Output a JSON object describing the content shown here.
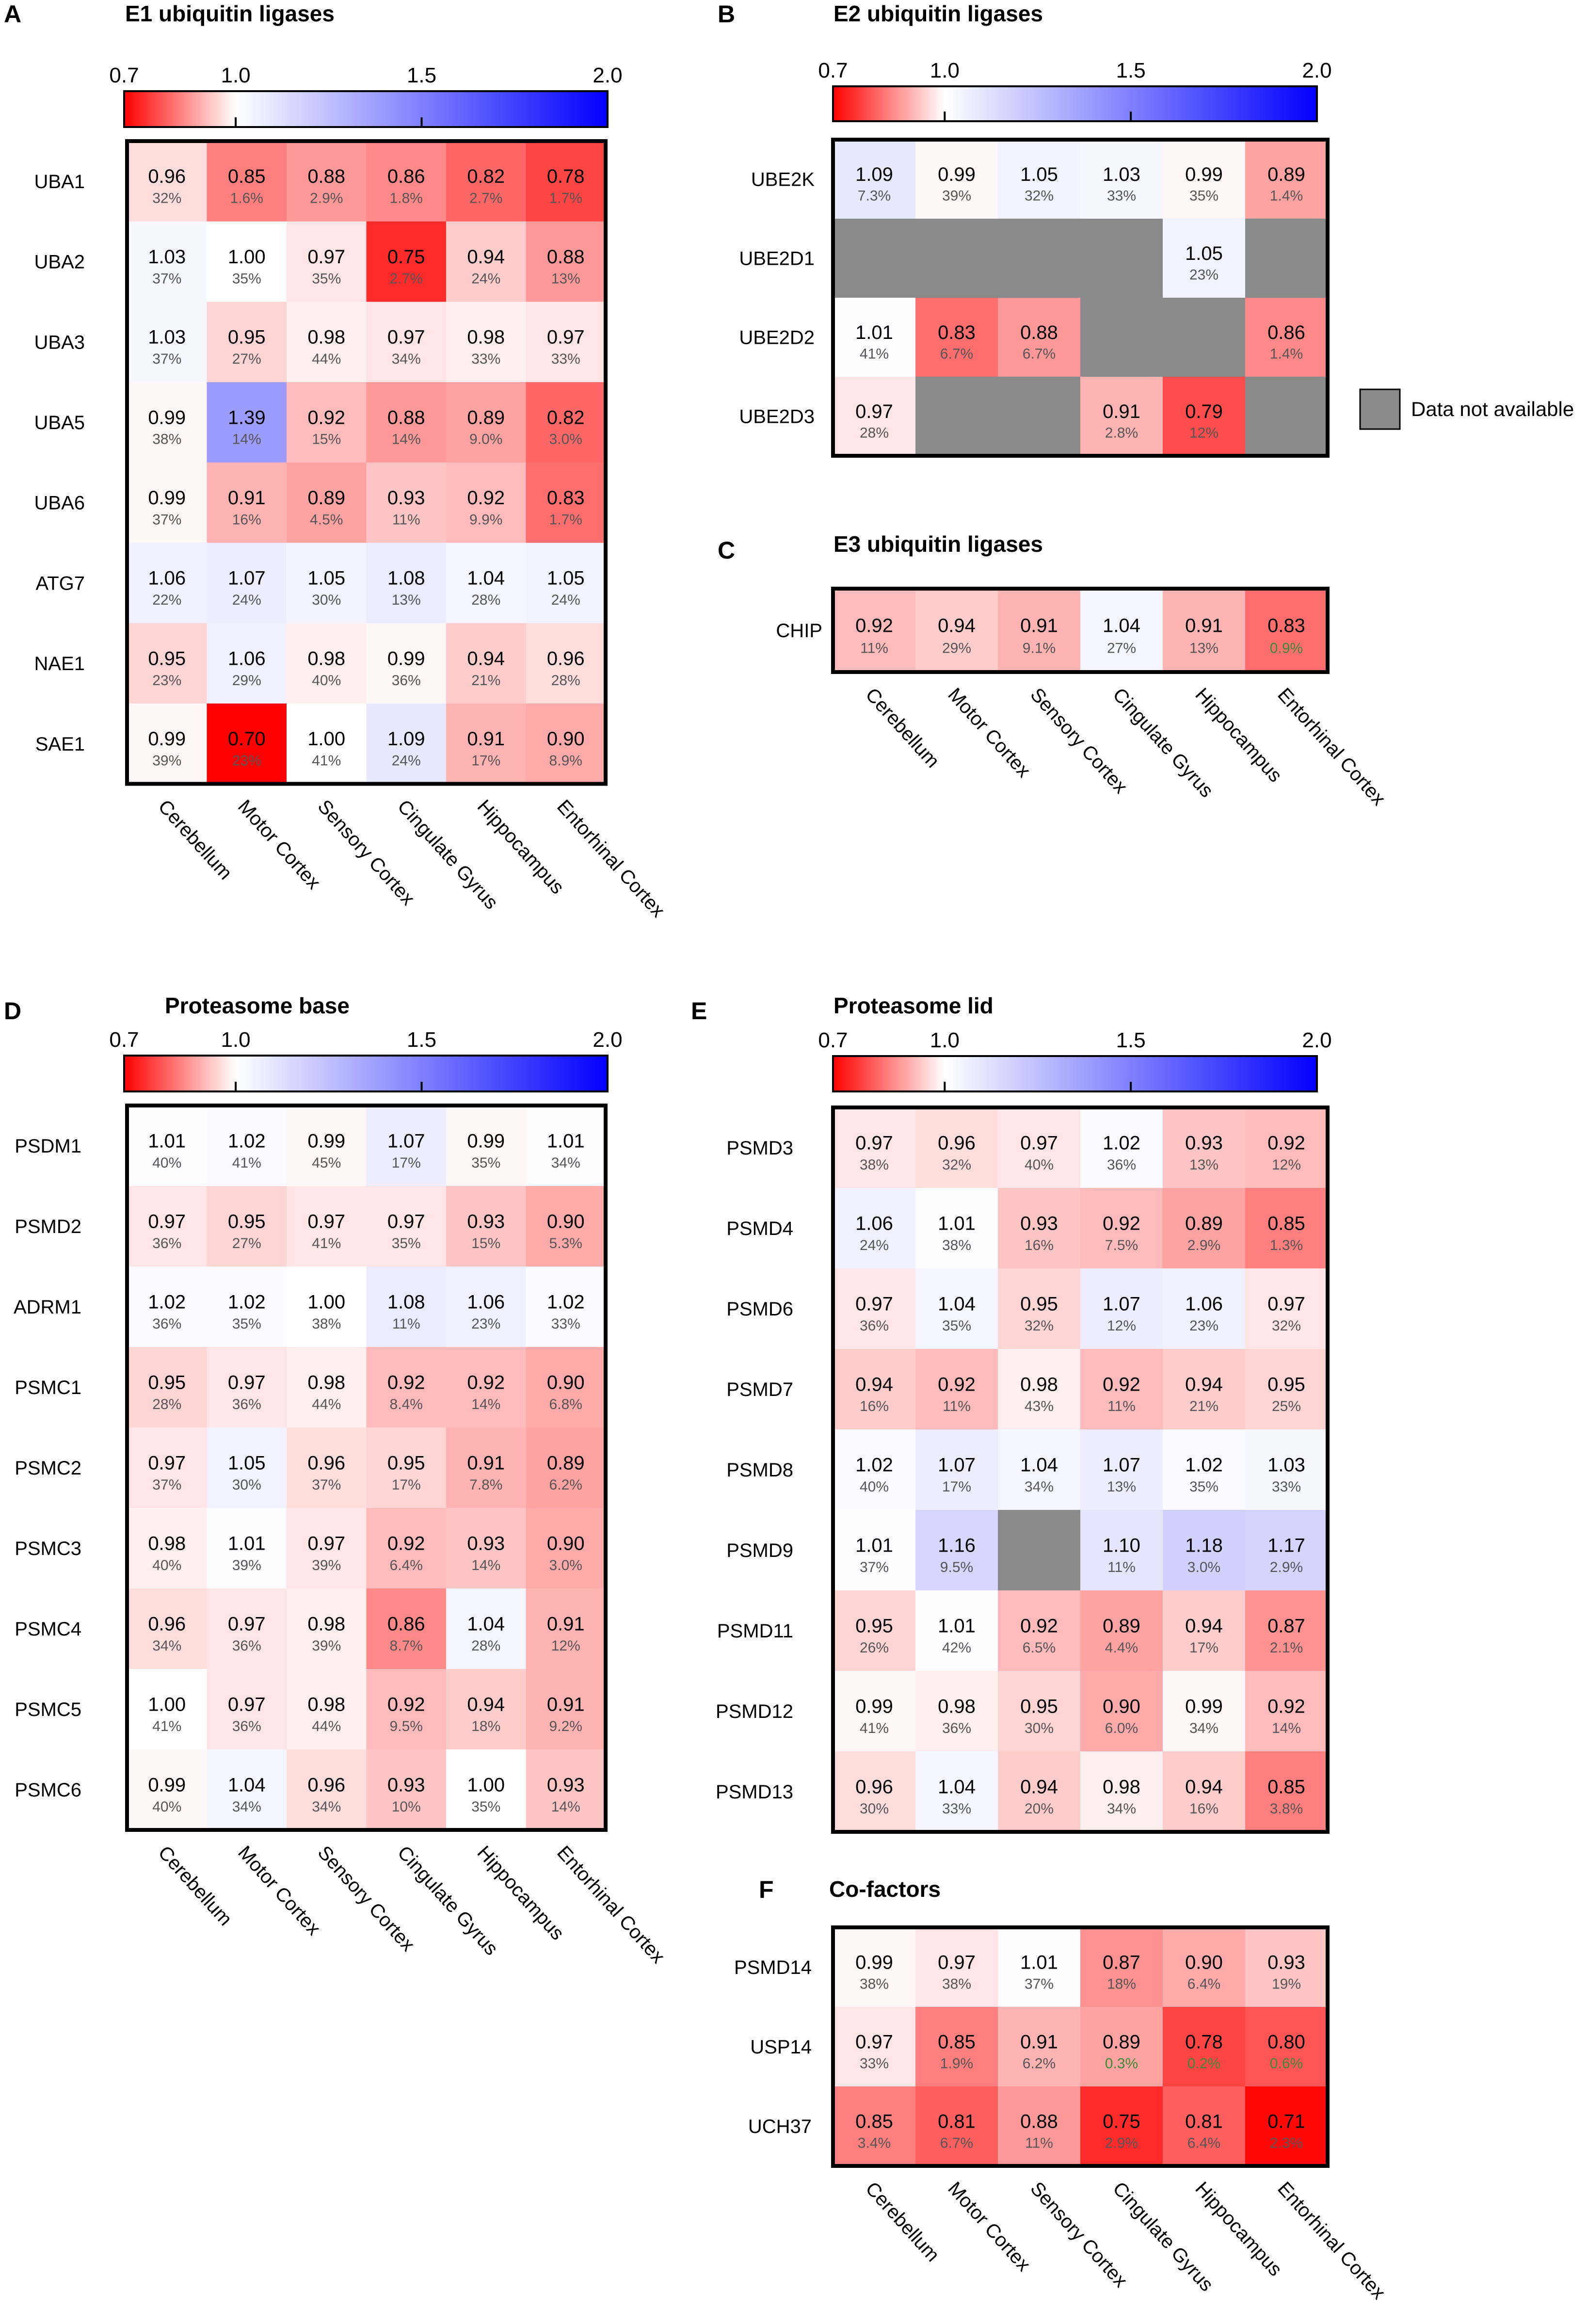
{
  "chart_data": [
    {
      "type": "heatmap",
      "panel_letter": "A",
      "title": "E1 ubiquitin ligases",
      "colorbar": {
        "min": 0.7,
        "max": 2.0,
        "ticks": [
          "0.7",
          "1.0",
          "1.5",
          "2.0"
        ]
      },
      "columns": [
        "Cerebellum",
        "Motor Cortex",
        "Sensory Cortex",
        "Cingulate Gyrus",
        "Hippocampus",
        "Entorhinal Cortex"
      ],
      "rows": [
        "UBA1",
        "UBA2",
        "UBA3",
        "UBA5",
        "UBA6",
        "ATG7",
        "NAE1",
        "SAE1"
      ],
      "values": [
        [
          0.96,
          0.85,
          0.88,
          0.86,
          0.82,
          0.78
        ],
        [
          1.03,
          1.0,
          0.97,
          0.75,
          0.94,
          0.88
        ],
        [
          1.03,
          0.95,
          0.98,
          0.97,
          0.98,
          0.97
        ],
        [
          0.99,
          1.39,
          0.92,
          0.88,
          0.89,
          0.82
        ],
        [
          0.99,
          0.91,
          0.89,
          0.93,
          0.92,
          0.83
        ],
        [
          1.06,
          1.07,
          1.05,
          1.08,
          1.04,
          1.05
        ],
        [
          0.95,
          1.06,
          0.98,
          0.99,
          0.94,
          0.96
        ],
        [
          0.99,
          0.7,
          1.0,
          1.09,
          0.91,
          0.9
        ]
      ],
      "values_text": [
        [
          "0.96",
          "0.85",
          "0.88",
          "0.86",
          "0.82",
          "0.78"
        ],
        [
          "1.03",
          "1.00",
          "0.97",
          "0.75",
          "0.94",
          "0.88"
        ],
        [
          "1.03",
          "0.95",
          "0.98",
          "0.97",
          "0.98",
          "0.97"
        ],
        [
          "0.99",
          "1.39",
          "0.92",
          "0.88",
          "0.89",
          "0.82"
        ],
        [
          "0.99",
          "0.91",
          "0.89",
          "0.93",
          "0.92",
          "0.83"
        ],
        [
          "1.06",
          "1.07",
          "1.05",
          "1.08",
          "1.04",
          "1.05"
        ],
        [
          "0.95",
          "1.06",
          "0.98",
          "0.99",
          "0.94",
          "0.96"
        ],
        [
          "0.99",
          "0.70",
          "1.00",
          "1.09",
          "0.91",
          "0.90"
        ]
      ],
      "percents": [
        [
          "32%",
          "1.6%",
          "2.9%",
          "1.8%",
          "2.7%",
          "1.7%"
        ],
        [
          "37%",
          "35%",
          "35%",
          "2.7%",
          "24%",
          "13%"
        ],
        [
          "37%",
          "27%",
          "44%",
          "34%",
          "33%",
          "33%"
        ],
        [
          "38%",
          "14%",
          "15%",
          "14%",
          "9.0%",
          "3.0%"
        ],
        [
          "37%",
          "16%",
          "4.5%",
          "11%",
          "9.9%",
          "1.7%"
        ],
        [
          "22%",
          "24%",
          "30%",
          "13%",
          "28%",
          "24%"
        ],
        [
          "23%",
          "29%",
          "40%",
          "36%",
          "21%",
          "28%"
        ],
        [
          "39%",
          "23%",
          "41%",
          "24%",
          "17%",
          "8.9%"
        ]
      ]
    },
    {
      "type": "heatmap",
      "panel_letter": "B",
      "title": "E2 ubiquitin ligases",
      "colorbar": {
        "min": 0.7,
        "max": 2.0,
        "ticks": [
          "0.7",
          "1.0",
          "1.5",
          "2.0"
        ]
      },
      "columns": [
        "Cerebellum",
        "Motor Cortex",
        "Sensory Cortex",
        "Cingulate Gyrus",
        "Hippocampus",
        "Entorhinal Cortex"
      ],
      "rows": [
        "UBE2K",
        "UBE2D1",
        "UBE2D2",
        "UBE2D3"
      ],
      "values": [
        [
          1.09,
          0.99,
          1.05,
          1.03,
          0.99,
          0.89
        ],
        [
          null,
          null,
          null,
          null,
          1.05,
          null
        ],
        [
          1.01,
          0.83,
          0.88,
          null,
          null,
          0.86
        ],
        [
          0.97,
          null,
          null,
          0.91,
          0.79,
          null
        ]
      ],
      "values_text": [
        [
          "1.09",
          "0.99",
          "1.05",
          "1.03",
          "0.99",
          "0.89"
        ],
        [
          null,
          null,
          null,
          null,
          "1.05",
          null
        ],
        [
          "1.01",
          "0.83",
          "0.88",
          null,
          null,
          "0.86"
        ],
        [
          "0.97",
          null,
          null,
          "0.91",
          "0.79",
          null
        ]
      ],
      "percents": [
        [
          "7.3%",
          "39%",
          "32%",
          "33%",
          "35%",
          "1.4%"
        ],
        [
          null,
          null,
          null,
          null,
          "23%",
          null
        ],
        [
          "41%",
          "6.7%",
          "6.7%",
          null,
          null,
          "1.4%"
        ],
        [
          "28%",
          null,
          null,
          "2.8%",
          "12%",
          null
        ]
      ],
      "missing_legend": "Data not available"
    },
    {
      "type": "heatmap",
      "panel_letter": "C",
      "title": "E3 ubiquitin ligases",
      "columns": [
        "Cerebellum",
        "Motor Cortex",
        "Sensory Cortex",
        "Cingulate Gyrus",
        "Hippocampus",
        "Entorhinal Cortex"
      ],
      "rows": [
        "CHIP"
      ],
      "values": [
        [
          0.92,
          0.94,
          0.91,
          1.04,
          0.91,
          0.83
        ]
      ],
      "values_text": [
        [
          "0.92",
          "0.94",
          "0.91",
          "1.04",
          "0.91",
          "0.83"
        ]
      ],
      "percents": [
        [
          "11%",
          "29%",
          "9.1%",
          "27%",
          "13%",
          "0.9%"
        ]
      ]
    },
    {
      "type": "heatmap",
      "panel_letter": "D",
      "title": "Proteasome base",
      "colorbar": {
        "min": 0.7,
        "max": 2.0,
        "ticks": [
          "0.7",
          "1.0",
          "1.5",
          "2.0"
        ]
      },
      "columns": [
        "Cerebellum",
        "Motor Cortex",
        "Sensory Cortex",
        "Cingulate Gyrus",
        "Hippocampus",
        "Entorhinal Cortex"
      ],
      "rows": [
        "PSDM1",
        "PSMD2",
        "ADRM1",
        "PSMC1",
        "PSMC2",
        "PSMC3",
        "PSMC4",
        "PSMC5",
        "PSMC6"
      ],
      "values": [
        [
          1.01,
          1.02,
          0.99,
          1.07,
          0.99,
          1.01
        ],
        [
          0.97,
          0.95,
          0.97,
          0.97,
          0.93,
          0.9
        ],
        [
          1.02,
          1.02,
          1.0,
          1.08,
          1.06,
          1.02
        ],
        [
          0.95,
          0.97,
          0.98,
          0.92,
          0.92,
          0.9
        ],
        [
          0.97,
          1.05,
          0.96,
          0.95,
          0.91,
          0.89
        ],
        [
          0.98,
          1.01,
          0.97,
          0.92,
          0.93,
          0.9
        ],
        [
          0.96,
          0.97,
          0.98,
          0.86,
          1.04,
          0.91
        ],
        [
          1.0,
          0.97,
          0.98,
          0.92,
          0.94,
          0.91
        ],
        [
          0.99,
          1.04,
          0.96,
          0.93,
          1.0,
          0.93
        ]
      ],
      "values_text": [
        [
          "1.01",
          "1.02",
          "0.99",
          "1.07",
          "0.99",
          "1.01"
        ],
        [
          "0.97",
          "0.95",
          "0.97",
          "0.97",
          "0.93",
          "0.90"
        ],
        [
          "1.02",
          "1.02",
          "1.00",
          "1.08",
          "1.06",
          "1.02"
        ],
        [
          "0.95",
          "0.97",
          "0.98",
          "0.92",
          "0.92",
          "0.90"
        ],
        [
          "0.97",
          "1.05",
          "0.96",
          "0.95",
          "0.91",
          "0.89"
        ],
        [
          "0.98",
          "1.01",
          "0.97",
          "0.92",
          "0.93",
          "0.90"
        ],
        [
          "0.96",
          "0.97",
          "0.98",
          "0.86",
          "1.04",
          "0.91"
        ],
        [
          "1.00",
          "0.97",
          "0.98",
          "0.92",
          "0.94",
          "0.91"
        ],
        [
          "0.99",
          "1.04",
          "0.96",
          "0.93",
          "1.00",
          "0.93"
        ]
      ],
      "percents": [
        [
          "40%",
          "41%",
          "45%",
          "17%",
          "35%",
          "34%"
        ],
        [
          "36%",
          "27%",
          "41%",
          "35%",
          "15%",
          "5.3%"
        ],
        [
          "36%",
          "35%",
          "38%",
          "11%",
          "23%",
          "33%"
        ],
        [
          "28%",
          "36%",
          "44%",
          "8.4%",
          "14%",
          "6.8%"
        ],
        [
          "37%",
          "30%",
          "37%",
          "17%",
          "7.8%",
          "6.2%"
        ],
        [
          "40%",
          "39%",
          "39%",
          "6.4%",
          "14%",
          "3.0%"
        ],
        [
          "34%",
          "36%",
          "39%",
          "8.7%",
          "28%",
          "12%"
        ],
        [
          "41%",
          "36%",
          "44%",
          "9.5%",
          "18%",
          "9.2%"
        ],
        [
          "40%",
          "34%",
          "34%",
          "10%",
          "35%",
          "14%"
        ]
      ]
    },
    {
      "type": "heatmap",
      "panel_letter": "E",
      "title": "Proteasome lid",
      "colorbar": {
        "min": 0.7,
        "max": 2.0,
        "ticks": [
          "0.7",
          "1.0",
          "1.5",
          "2.0"
        ]
      },
      "columns": [
        "Cerebellum",
        "Motor Cortex",
        "Sensory Cortex",
        "Cingulate Gyrus",
        "Hippocampus",
        "Entorhinal Cortex"
      ],
      "rows": [
        "PSMD3",
        "PSMD4",
        "PSMD6",
        "PSMD7",
        "PSMD8",
        "PSMD9",
        "PSMD11",
        "PSMD12",
        "PSMD13"
      ],
      "values": [
        [
          0.97,
          0.96,
          0.97,
          1.02,
          0.93,
          0.92
        ],
        [
          1.06,
          1.01,
          0.93,
          0.92,
          0.89,
          0.85
        ],
        [
          0.97,
          1.04,
          0.95,
          1.07,
          1.06,
          0.97
        ],
        [
          0.94,
          0.92,
          0.98,
          0.92,
          0.94,
          0.95
        ],
        [
          1.02,
          1.07,
          1.04,
          1.07,
          1.02,
          1.03
        ],
        [
          1.01,
          1.16,
          null,
          1.1,
          1.18,
          1.17
        ],
        [
          0.95,
          1.01,
          0.92,
          0.89,
          0.94,
          0.87
        ],
        [
          0.99,
          0.98,
          0.95,
          0.9,
          0.99,
          0.92
        ],
        [
          0.96,
          1.04,
          0.94,
          0.98,
          0.94,
          0.85
        ]
      ],
      "values_text": [
        [
          "0.97",
          "0.96",
          "0.97",
          "1.02",
          "0.93",
          "0.92"
        ],
        [
          "1.06",
          "1.01",
          "0.93",
          "0.92",
          "0.89",
          "0.85"
        ],
        [
          "0.97",
          "1.04",
          "0.95",
          "1.07",
          "1.06",
          "0.97"
        ],
        [
          "0.94",
          "0.92",
          "0.98",
          "0.92",
          "0.94",
          "0.95"
        ],
        [
          "1.02",
          "1.07",
          "1.04",
          "1.07",
          "1.02",
          "1.03"
        ],
        [
          "1.01",
          "1.16",
          null,
          "1.10",
          "1.18",
          "1.17"
        ],
        [
          "0.95",
          "1.01",
          "0.92",
          "0.89",
          "0.94",
          "0.87"
        ],
        [
          "0.99",
          "0.98",
          "0.95",
          "0.90",
          "0.99",
          "0.92"
        ],
        [
          "0.96",
          "1.04",
          "0.94",
          "0.98",
          "0.94",
          "0.85"
        ]
      ],
      "percents": [
        [
          "38%",
          "32%",
          "40%",
          "36%",
          "13%",
          "12%"
        ],
        [
          "24%",
          "38%",
          "16%",
          "7.5%",
          "2.9%",
          "1.3%"
        ],
        [
          "36%",
          "35%",
          "32%",
          "12%",
          "23%",
          "32%"
        ],
        [
          "16%",
          "11%",
          "43%",
          "11%",
          "21%",
          "25%"
        ],
        [
          "40%",
          "17%",
          "34%",
          "13%",
          "35%",
          "33%"
        ],
        [
          "37%",
          "9.5%",
          null,
          "11%",
          "3.0%",
          "2.9%"
        ],
        [
          "26%",
          "42%",
          "6.5%",
          "4.4%",
          "17%",
          "2.1%"
        ],
        [
          "41%",
          "36%",
          "30%",
          "6.0%",
          "34%",
          "14%"
        ],
        [
          "30%",
          "33%",
          "20%",
          "34%",
          "16%",
          "3.8%"
        ]
      ]
    },
    {
      "type": "heatmap",
      "panel_letter": "F",
      "title": "Co-factors",
      "columns": [
        "Cerebellum",
        "Motor Cortex",
        "Sensory Cortex",
        "Cingulate Gyrus",
        "Hippocampus",
        "Entorhinal Cortex"
      ],
      "rows": [
        "PSMD14",
        "USP14",
        "UCH37"
      ],
      "values": [
        [
          0.99,
          0.97,
          1.01,
          0.87,
          0.9,
          0.93
        ],
        [
          0.97,
          0.85,
          0.91,
          0.89,
          0.78,
          0.8
        ],
        [
          0.85,
          0.81,
          0.88,
          0.75,
          0.81,
          0.71
        ]
      ],
      "values_text": [
        [
          "0.99",
          "0.97",
          "1.01",
          "0.87",
          "0.90",
          "0.93"
        ],
        [
          "0.97",
          "0.85",
          "0.91",
          "0.89",
          "0.78",
          "0.80"
        ],
        [
          "0.85",
          "0.81",
          "0.88",
          "0.75",
          "0.81",
          "0.71"
        ]
      ],
      "percents": [
        [
          "38%",
          "38%",
          "37%",
          "18%",
          "6.4%",
          "19%"
        ],
        [
          "33%",
          "1.9%",
          "6.2%",
          "0.3%",
          "0.2%",
          "0.6%"
        ],
        [
          "3.4%",
          "6.7%",
          "11%",
          "2.9%",
          "6.4%",
          "2.3%"
        ]
      ]
    }
  ],
  "colors": {
    "low": "#ff0000",
    "mid": "#ffffff",
    "high": "#0000ff",
    "missing": "#8a8a8a",
    "significant_percent": "#3a8a3a",
    "percent_text": "#555555"
  }
}
